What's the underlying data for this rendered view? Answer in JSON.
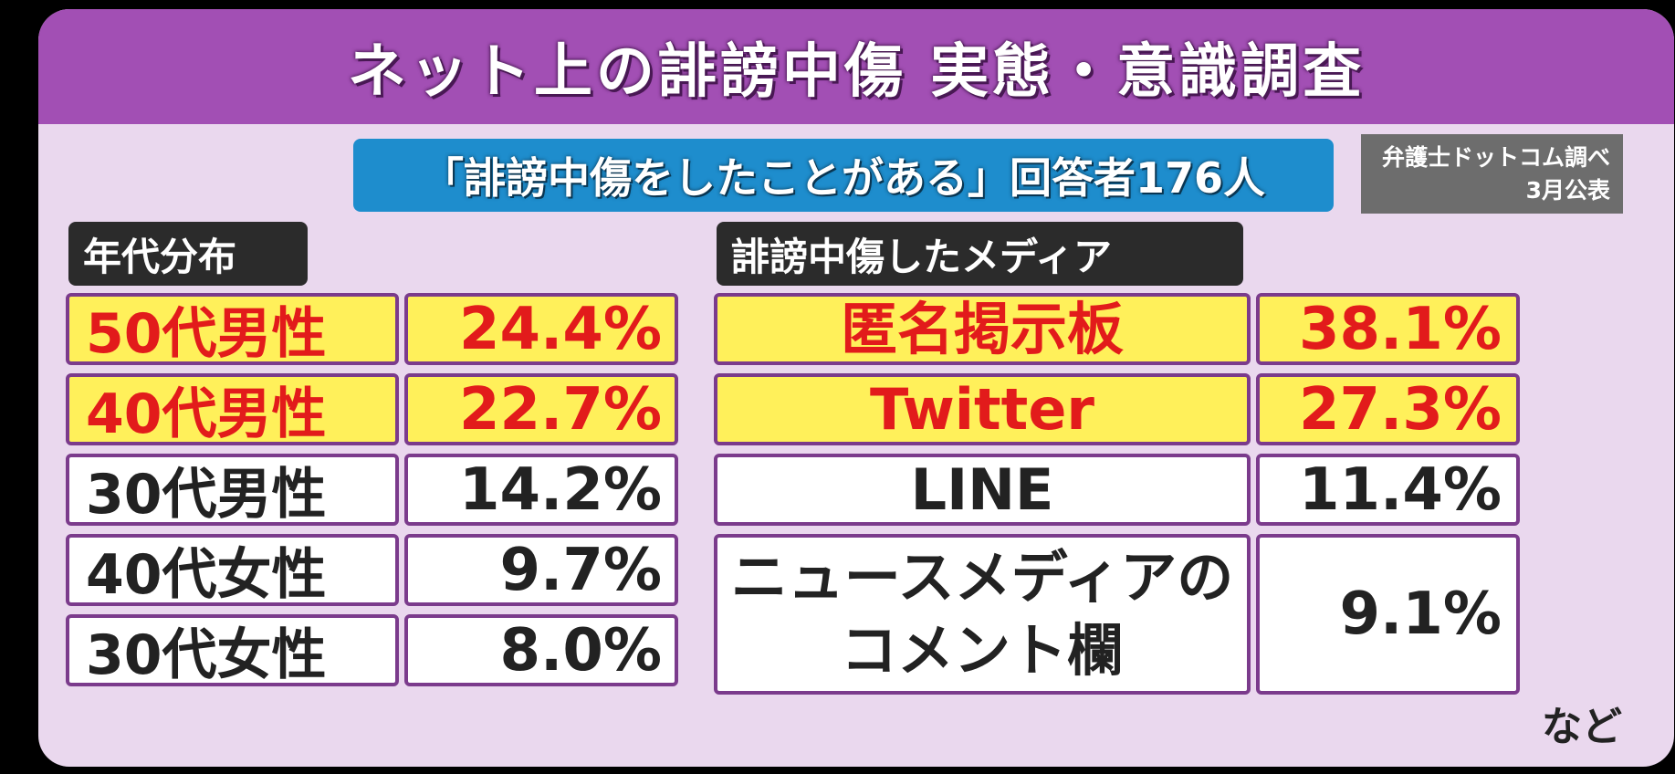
{
  "title": "ネット上の誹謗中傷 実態・意識調査",
  "subtitle": "「誹謗中傷をしたことがある」回答者176人",
  "source": {
    "line1": "弁護士ドットコム調べ",
    "line2": "3月公表"
  },
  "age_section": {
    "label": "年代分布",
    "rows": [
      {
        "label": "50代男性",
        "value": "24.4%"
      },
      {
        "label": "40代男性",
        "value": "22.7%"
      },
      {
        "label": "30代男性",
        "value": "14.2%"
      },
      {
        "label": "40代女性",
        "value": "9.7%"
      },
      {
        "label": "30代女性",
        "value": "8.0%"
      }
    ]
  },
  "media_section": {
    "label": "誹謗中傷したメディア",
    "rows": [
      {
        "label": "匿名掲示板",
        "value": "38.1%"
      },
      {
        "label": "Twitter",
        "value": "27.3%"
      },
      {
        "label": "LINE",
        "value": "11.4%"
      },
      {
        "label_line1": "ニュースメディアの",
        "label_line2": "コメント欄",
        "value": "9.1%"
      }
    ],
    "note": "など"
  },
  "colors": {
    "title_bar": "#a24fb4",
    "subtitle_bar": "#1e8dcd",
    "highlight_fill": "#fff05a",
    "highlight_text": "#e21b1b",
    "cell_border": "#7b3b8c"
  }
}
